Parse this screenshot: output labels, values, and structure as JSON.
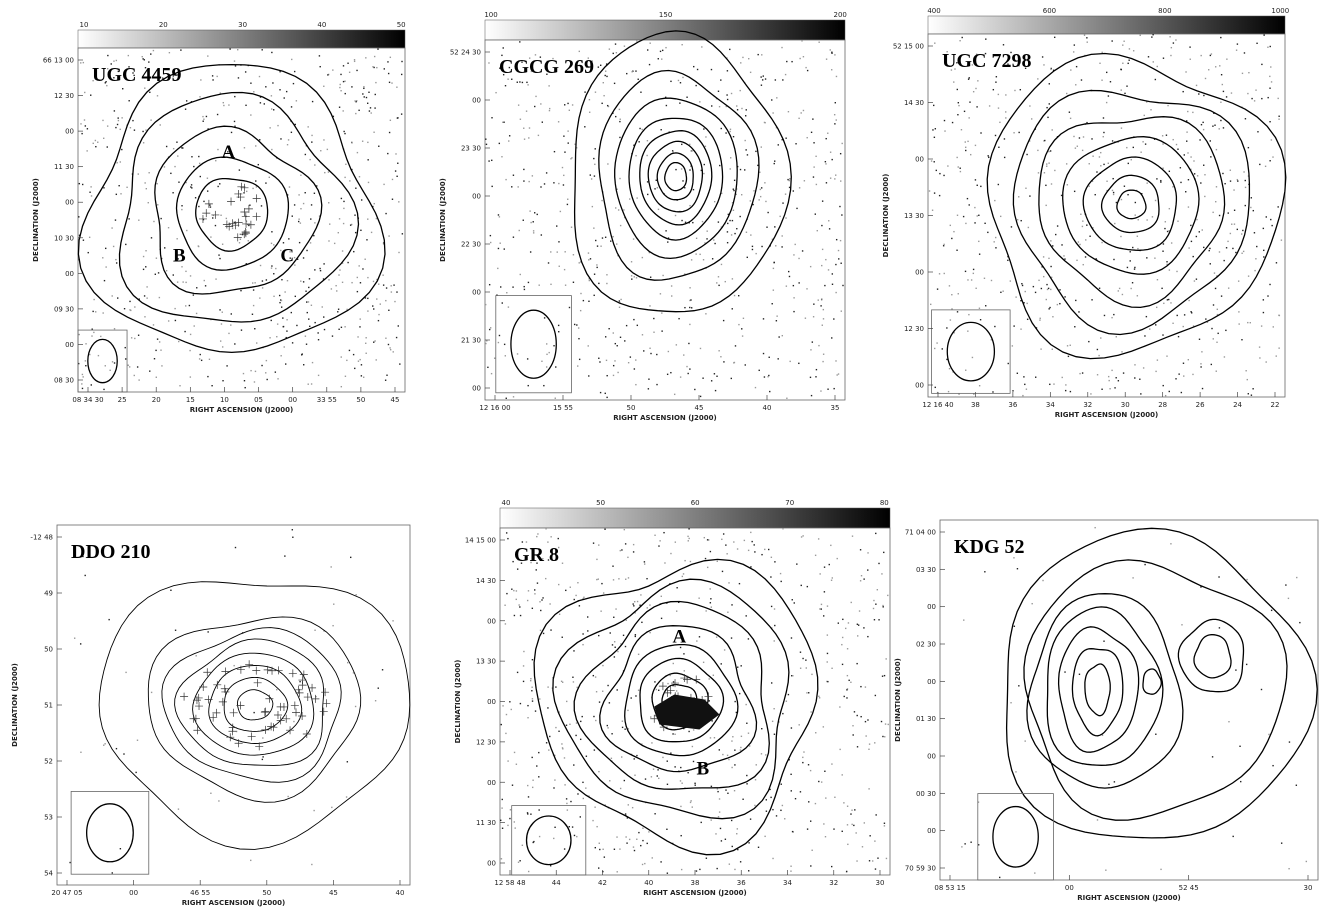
{
  "panels": [
    {
      "title": "UGC 4459",
      "colorbar_ticks": [
        "10",
        "20",
        "30",
        "40",
        "50"
      ],
      "y_ticks": [
        "66 13 00",
        "12 30",
        "00",
        "11 30",
        "00",
        "10 30",
        "00",
        "09 30",
        "00",
        "08 30"
      ],
      "x_ticks": [
        "08 34 30",
        "25",
        "20",
        "15",
        "10",
        "05",
        "00",
        "33 55",
        "50",
        "45"
      ],
      "x_label": "RIGHT ASCENSION (J2000)",
      "y_label": "DECLINATION (J2000)",
      "annotations": [
        "A",
        "B",
        "C"
      ]
    },
    {
      "title": "CGCG 269",
      "colorbar_ticks": [
        "100",
        "150",
        "200"
      ],
      "y_ticks": [
        "52 24 30",
        "00",
        "23 30",
        "00",
        "22 30",
        "00",
        "21 30",
        "00"
      ],
      "x_ticks": [
        "12 16 00",
        "15 55",
        "50",
        "45",
        "40",
        "35"
      ],
      "x_label": "RIGHT ASCENSION (J2000)",
      "y_label": "DECLINATION (J2000)",
      "annotations": []
    },
    {
      "title": "UGC 7298",
      "colorbar_ticks": [
        "400",
        "600",
        "800",
        "1000"
      ],
      "y_ticks": [
        "52 15 00",
        "14 30",
        "00",
        "13 30",
        "00",
        "12 30",
        "00"
      ],
      "x_ticks": [
        "12 16 40",
        "38",
        "36",
        "34",
        "32",
        "30",
        "28",
        "26",
        "24",
        "22"
      ],
      "x_label": "RIGHT ASCENSION (J2000)",
      "y_label": "DECLINATION (J2000)",
      "annotations": []
    },
    {
      "title": "DDO 210",
      "colorbar_ticks": [],
      "y_ticks": [
        "-12 48",
        "49",
        "50",
        "51",
        "52",
        "53",
        "54"
      ],
      "x_ticks": [
        "20 47 05",
        "00",
        "46 55",
        "50",
        "45",
        "40"
      ],
      "x_label": "RIGHT ASCENSION (J2000)",
      "y_label": "DECLINATION (J2000)",
      "annotations": []
    },
    {
      "title": "GR 8",
      "colorbar_ticks": [
        "40",
        "50",
        "60",
        "70",
        "80"
      ],
      "y_ticks": [
        "14 15 00",
        "14 30",
        "00",
        "13 30",
        "00",
        "12 30",
        "00",
        "11 30",
        "00"
      ],
      "x_ticks": [
        "12 58 48",
        "44",
        "42",
        "40",
        "38",
        "36",
        "34",
        "32",
        "30"
      ],
      "x_label": "RIGHT ASCENSION (J2000)",
      "y_label": "DECLINATION (J2000)",
      "annotations": [
        "A",
        "B"
      ]
    },
    {
      "title": "KDG 52",
      "colorbar_ticks": [],
      "y_ticks": [
        "71 04 00",
        "03 30",
        "00",
        "02 30",
        "00",
        "01 30",
        "00",
        "00 30",
        "00",
        "70 59 30"
      ],
      "x_ticks": [
        "08 53 15",
        "00",
        "52 45",
        "30"
      ],
      "x_label": "RIGHT ASCENSION (J2000)",
      "y_label": "DECLINATION (J2000)",
      "annotations": []
    }
  ]
}
